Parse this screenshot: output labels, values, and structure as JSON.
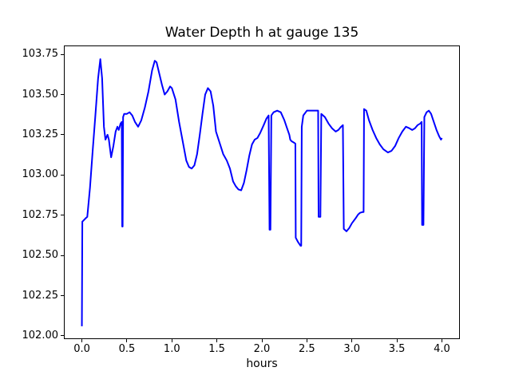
{
  "figure": {
    "background": "#ffffff",
    "frame_color": "#000000"
  },
  "chart_data": {
    "type": "line",
    "title": "Water Depth h at gauge 135",
    "xlabel": "hours",
    "ylabel": "",
    "grid": false,
    "legend": "none",
    "xlim": [
      -0.2,
      4.2
    ],
    "ylim": [
      101.98,
      103.805
    ],
    "xticks": {
      "values": [
        0.0,
        0.5,
        1.0,
        1.5,
        2.0,
        2.5,
        3.0,
        3.5,
        4.0
      ],
      "labels": [
        "0.0",
        "0.5",
        "1.0",
        "1.5",
        "2.0",
        "2.5",
        "3.0",
        "3.5",
        "4.0"
      ]
    },
    "yticks": {
      "values": [
        102.0,
        102.25,
        102.5,
        102.75,
        103.0,
        103.25,
        103.5,
        103.75
      ],
      "labels": [
        "102.00",
        "102.25",
        "102.50",
        "102.75",
        "103.00",
        "103.25",
        "103.50",
        "103.75"
      ]
    },
    "series": [
      {
        "name": "water-depth-h",
        "color": "#0000ff",
        "x": [
          0.0,
          0.005,
          0.04,
          0.06,
          0.09,
          0.12,
          0.15,
          0.18,
          0.205,
          0.225,
          0.245,
          0.262,
          0.285,
          0.3,
          0.325,
          0.35,
          0.375,
          0.395,
          0.41,
          0.43,
          0.443,
          0.448,
          0.453,
          0.458,
          0.47,
          0.5,
          0.53,
          0.56,
          0.59,
          0.625,
          0.66,
          0.7,
          0.74,
          0.78,
          0.81,
          0.83,
          0.86,
          0.89,
          0.92,
          0.95,
          0.98,
          1.0,
          1.04,
          1.08,
          1.12,
          1.16,
          1.19,
          1.22,
          1.25,
          1.28,
          1.31,
          1.34,
          1.37,
          1.4,
          1.43,
          1.46,
          1.49,
          1.53,
          1.57,
          1.61,
          1.645,
          1.68,
          1.71,
          1.74,
          1.77,
          1.8,
          1.83,
          1.86,
          1.89,
          1.92,
          1.95,
          1.98,
          2.02,
          2.05,
          2.075,
          2.085,
          2.095,
          2.105,
          2.13,
          2.17,
          2.21,
          2.25,
          2.28,
          2.305,
          2.315,
          2.33,
          2.36,
          2.372,
          2.376,
          2.4,
          2.43,
          2.437,
          2.443,
          2.46,
          2.5,
          2.55,
          2.6,
          2.625,
          2.63,
          2.65,
          2.66,
          2.7,
          2.74,
          2.78,
          2.82,
          2.85,
          2.88,
          2.9,
          2.91,
          2.94,
          2.97,
          3.0,
          3.04,
          3.07,
          3.09,
          3.12,
          3.13,
          3.135,
          3.16,
          3.19,
          3.23,
          3.27,
          3.31,
          3.35,
          3.4,
          3.44,
          3.48,
          3.52,
          3.56,
          3.6,
          3.64,
          3.67,
          3.7,
          3.73,
          3.76,
          3.775,
          3.78,
          3.795,
          3.805,
          3.83,
          3.855,
          3.88,
          3.91,
          3.94,
          3.97,
          3.99,
          4.0
        ],
        "y": [
          102.06,
          102.71,
          102.73,
          102.74,
          102.92,
          103.15,
          103.37,
          103.6,
          103.72,
          103.6,
          103.3,
          103.22,
          103.25,
          103.22,
          103.11,
          103.18,
          103.27,
          103.3,
          103.28,
          103.32,
          103.33,
          102.68,
          102.68,
          103.36,
          103.38,
          103.38,
          103.39,
          103.37,
          103.33,
          103.3,
          103.34,
          103.42,
          103.52,
          103.65,
          103.71,
          103.7,
          103.63,
          103.56,
          103.5,
          103.52,
          103.55,
          103.54,
          103.47,
          103.33,
          103.21,
          103.09,
          103.05,
          103.04,
          103.06,
          103.13,
          103.25,
          103.38,
          103.5,
          103.54,
          103.52,
          103.43,
          103.27,
          103.2,
          103.13,
          103.09,
          103.04,
          102.96,
          102.93,
          102.91,
          102.905,
          102.95,
          103.03,
          103.12,
          103.19,
          103.22,
          103.23,
          103.26,
          103.31,
          103.35,
          103.37,
          102.66,
          102.66,
          103.37,
          103.39,
          103.4,
          103.39,
          103.34,
          103.29,
          103.25,
          103.22,
          103.21,
          103.2,
          103.195,
          102.61,
          102.585,
          102.56,
          102.56,
          103.3,
          103.37,
          103.4,
          103.4,
          103.4,
          103.4,
          102.74,
          102.74,
          103.38,
          103.36,
          103.32,
          103.29,
          103.27,
          103.28,
          103.3,
          103.31,
          102.665,
          102.65,
          102.67,
          102.7,
          102.73,
          102.755,
          102.765,
          102.77,
          102.77,
          103.41,
          103.4,
          103.34,
          103.28,
          103.23,
          103.19,
          103.16,
          103.14,
          103.15,
          103.18,
          103.23,
          103.27,
          103.3,
          103.29,
          103.28,
          103.29,
          103.31,
          103.32,
          103.33,
          102.69,
          102.69,
          103.36,
          103.39,
          103.4,
          103.38,
          103.33,
          103.28,
          103.24,
          103.22,
          103.23
        ]
      }
    ]
  }
}
